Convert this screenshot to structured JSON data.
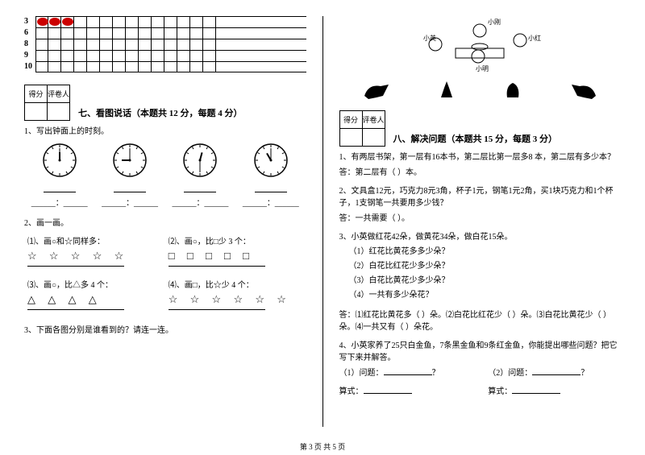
{
  "chart": {
    "rows": [
      "3",
      "6",
      "8",
      "9",
      "10"
    ],
    "cols": 14,
    "filled": [
      {
        "row": 0,
        "count": 3,
        "color": "#cc0000"
      }
    ]
  },
  "score_labels": {
    "score": "得分",
    "grader": "评卷人"
  },
  "section7": {
    "title": "七、看图说话（本题共 12 分，每题 4 分）",
    "q1": "1、写出钟面上的时刻。",
    "clocks": [
      {
        "h": 12,
        "m": 0
      },
      {
        "h": 9,
        "m": 0
      },
      {
        "h": 12,
        "m": 30
      },
      {
        "h": 11,
        "m": 0
      }
    ],
    "q2": "2、画一画。",
    "parts": [
      {
        "label": "⑴、画○和☆同样多：",
        "stars": "☆ ☆ ☆ ☆ ☆"
      },
      {
        "label": "⑵、画○，比□少 3 个：",
        "stars": "□ □ □ □ □"
      },
      {
        "label": "⑶、画○，比△多 4 个：",
        "stars": "△ △ △ △"
      },
      {
        "label": "⑷、画□，比☆少 4 个：",
        "stars": "☆ ☆ ☆ ☆ ☆ ☆"
      }
    ],
    "q3": "3、下面各图分别是谁看到的？请连一连。"
  },
  "kids_labels": {
    "left": "小英",
    "top": "小刚",
    "right": "小红",
    "bottom": "小明"
  },
  "section8": {
    "title": "八、解决问题（本题共 15 分，每题 3 分）",
    "q1": "1、有两层书架，第一层有16本书，第二层比第一层多8 本，第二层有多少本？",
    "a1": "答：第二层有（    ）本。",
    "q2": "2、文具盒12元，巧克力8元3角，杯子1元，钢笔1元2角，买1块巧克力和1个杯子，1支钢笔一共要用多少钱？",
    "a2": "答：一共需要（    ）。",
    "q3": "3、小英做红花42朵，做黄花34朵，做白花15朵。",
    "q3_1": "（1）红花比黄花多多少朵？",
    "q3_2": "（2）白花比红花少多少朵？",
    "q3_3": "（3）白花比黄花少多少朵？",
    "q3_4": "（4）一共有多少朵花？",
    "a3": "答：⑴红花比黄花多（    ）朵。⑵白花比红花少（    ）朵。⑶白花比黄花少（    ）朵。⑷一共又有（    ）朵花。",
    "q4": "4、小英家养了25只白金鱼，7条黑金鱼和9条红金鱼，你能提出哪些问题？把它写下来并解答。",
    "p1": "（1）问题：",
    "p2": "（2）问题：",
    "eq": "算式："
  },
  "footer": "第 3 页  共 5 页"
}
